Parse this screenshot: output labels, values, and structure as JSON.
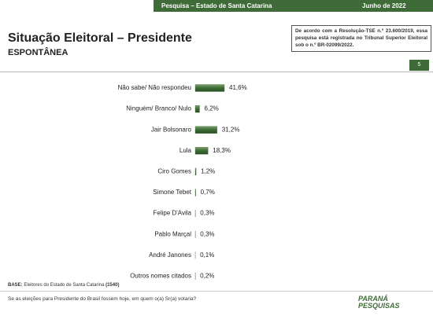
{
  "header": {
    "survey": "Pesquisa – Estado de Santa Catarina",
    "date": "Junho de 2022"
  },
  "notice": "De acordo com a Resolução-TSE n.º 23.600/2019, essa pesquisa está registrada no Tribunal Superior Eleitoral sob o n.º BR-02099/2022.",
  "page_number": "5",
  "base": {
    "label": "BASE:",
    "text": "Eleitores do Estado de Santa Catarina",
    "count": "(1540)"
  },
  "question": "Se as eleições para Presidente do Brasil fossem hoje, em quem o(a) Sr(a) votaria?",
  "logo": {
    "line1": "PARANÁ",
    "line2": "PESQUISAS"
  },
  "chart_data": {
    "type": "bar",
    "orientation": "horizontal",
    "title": "Situação Eleitoral – Presidente",
    "subtitle": "ESPONTÂNEA",
    "categories": [
      "Não sabe/ Não respondeu",
      "Ninguém/ Branco/ Nulo",
      "Jair Bolsonaro",
      "Lula",
      "Ciro Gomes",
      "Simone Tebet",
      "Felipe D'Avila",
      "Pablo Marçal",
      "André Janones",
      "Outros nomes citados"
    ],
    "values": [
      41.6,
      6.2,
      31.2,
      18.3,
      1.2,
      0.7,
      0.3,
      0.3,
      0.1,
      0.2
    ],
    "value_labels": [
      "41,6%",
      "6,2%",
      "31,2%",
      "18,3%",
      "1,2%",
      "0,7%",
      "0,3%",
      "0,3%",
      "0,1%",
      "0,2%"
    ],
    "color": "#3d6b35"
  }
}
